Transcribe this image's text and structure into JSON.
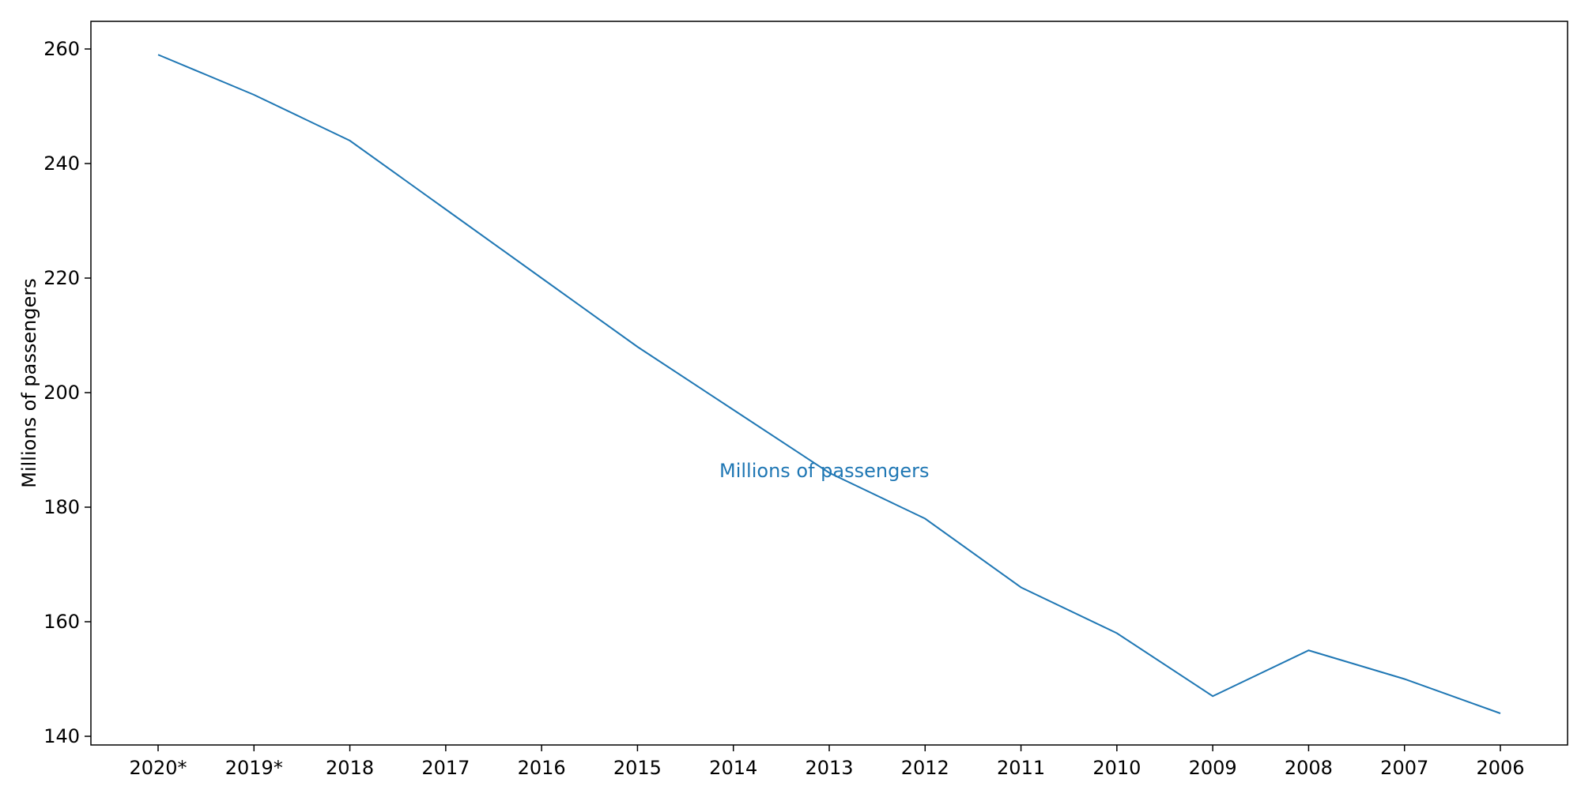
{
  "chart_data": {
    "type": "line",
    "categories": [
      "2020*",
      "2019*",
      "2018",
      "2017",
      "2016",
      "2015",
      "2014",
      "2013",
      "2012",
      "2011",
      "2010",
      "2009",
      "2008",
      "2007",
      "2006"
    ],
    "series": [
      {
        "values": [
          259,
          252,
          244,
          232,
          220,
          208,
          197,
          186,
          178,
          166,
          158,
          147,
          155,
          150,
          144
        ],
        "color": "#1f77b4"
      }
    ],
    "title": "",
    "xlabel": "",
    "ylabel": "Millions of passengers",
    "ylim": [
      140,
      260
    ],
    "yticks": [
      140,
      160,
      180,
      200,
      220,
      240,
      260
    ],
    "grid": false,
    "annotation": {
      "text": "Millions of passengers",
      "color": "#1f77b4"
    }
  }
}
